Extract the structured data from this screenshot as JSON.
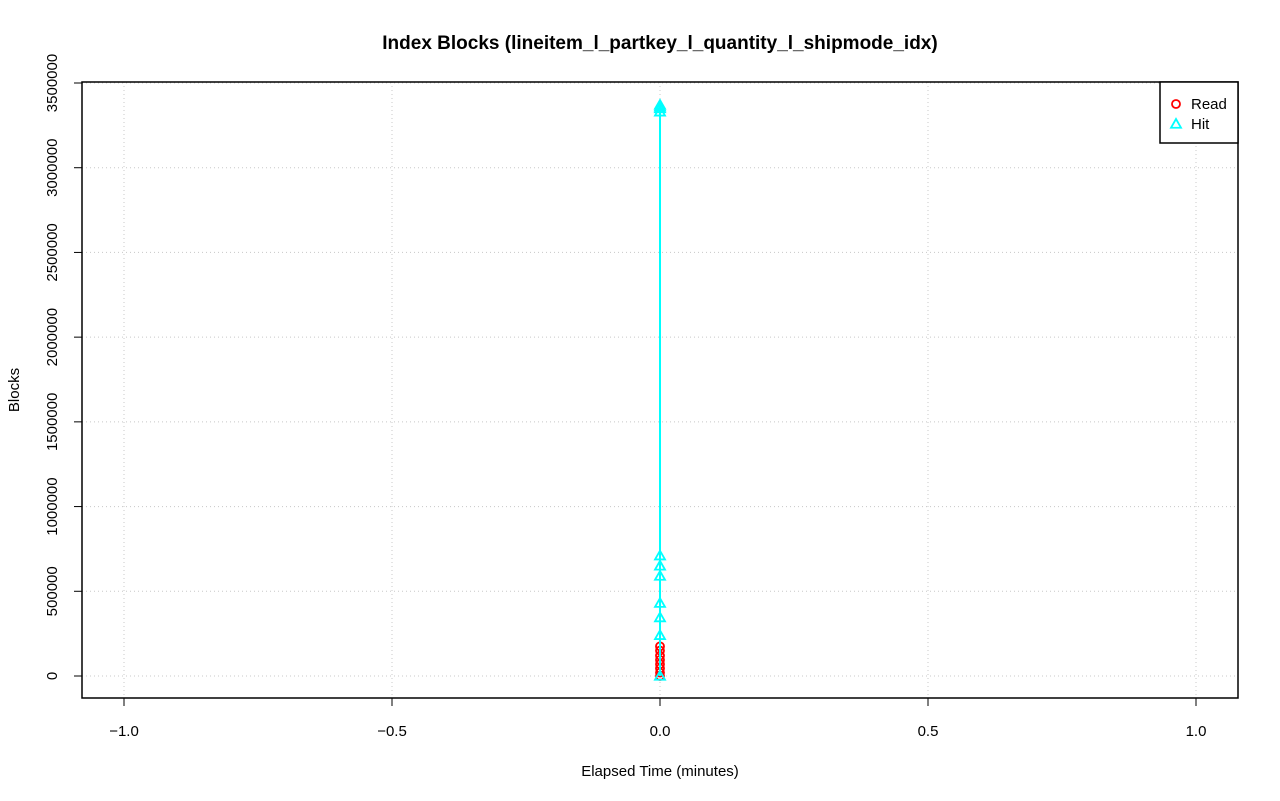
{
  "chart_data": {
    "type": "scatter",
    "title": "Index Blocks (lineitem_l_partkey_l_quantity_l_shipmode_idx)",
    "xlabel": "Elapsed Time (minutes)",
    "ylabel": "Blocks",
    "xlim": [
      -1.0,
      1.0
    ],
    "ylim": [
      0,
      3500000
    ],
    "x_ticks": [
      "−1.0",
      "−0.5",
      "0.0",
      "0.5",
      "1.0"
    ],
    "x_tick_values": [
      -1.0,
      -0.5,
      0.0,
      0.5,
      1.0
    ],
    "y_ticks": [
      "0",
      "500000",
      "1000000",
      "1500000",
      "2000000",
      "2500000",
      "3000000",
      "3500000"
    ],
    "y_tick_values": [
      0,
      500000,
      1000000,
      1500000,
      2000000,
      2500000,
      3000000,
      3500000
    ],
    "grid": true,
    "legend_position": "top-right",
    "series": [
      {
        "name": "Read",
        "color": "#ff0000",
        "marker": "circle",
        "x": [
          0,
          0,
          0,
          0,
          0,
          0,
          0,
          0
        ],
        "y": [
          0,
          20000,
          45000,
          70000,
          95000,
          120000,
          150000,
          175000
        ]
      },
      {
        "name": "Hit",
        "color": "#00ffff",
        "marker": "triangle",
        "x": [
          0,
          0,
          0,
          0,
          0,
          0,
          0,
          0,
          0,
          0,
          0
        ],
        "y": [
          0,
          240000,
          345000,
          430000,
          590000,
          650000,
          710000,
          3330000,
          3350000,
          3360000,
          3370000
        ]
      }
    ]
  }
}
